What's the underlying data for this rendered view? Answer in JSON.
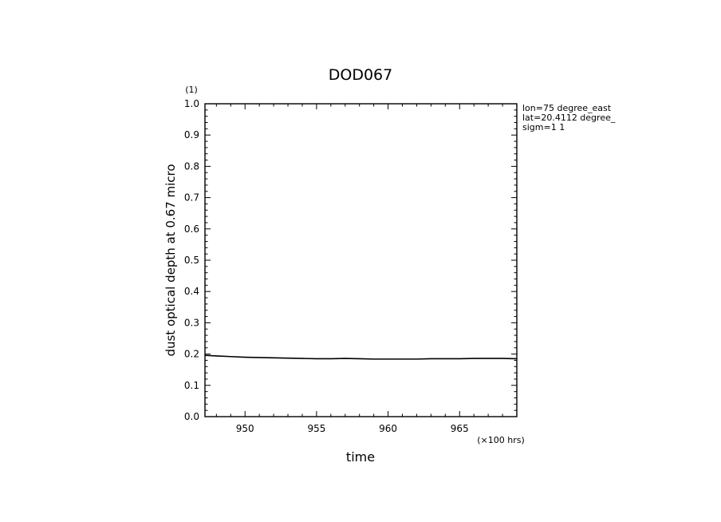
{
  "chart_data": {
    "type": "line",
    "title": "DOD067",
    "xlabel": "time",
    "ylabel": "dust optical depth at 0.67 micro",
    "x_unit_label": "(×100 hrs)",
    "y_unit_label": "(1)",
    "xlim": [
      947.2,
      969.0
    ],
    "ylim": [
      0.0,
      1.0
    ],
    "x_ticks": [
      950,
      955,
      960,
      965
    ],
    "x_tick_labels": [
      "950",
      "955",
      "960",
      "965"
    ],
    "y_ticks": [
      0.0,
      0.1,
      0.2,
      0.3,
      0.4,
      0.5,
      0.6,
      0.7,
      0.8,
      0.9,
      1.0
    ],
    "y_tick_labels": [
      "0.0",
      "0.1",
      "0.2",
      "0.3",
      "0.4",
      "0.5",
      "0.6",
      "0.7",
      "0.8",
      "0.9",
      "1.0"
    ],
    "grid": false,
    "annotations": [
      "lon=75 degree_east",
      "lat=20.4112 degree_",
      "sigm=1 1"
    ],
    "series": [
      {
        "x": [
          947.2,
          948,
          949,
          950,
          951,
          952,
          953,
          954,
          955,
          956,
          957,
          958,
          959,
          960,
          961,
          962,
          963,
          964,
          965,
          966,
          967,
          968,
          969
        ],
        "values": [
          0.196,
          0.194,
          0.192,
          0.19,
          0.189,
          0.188,
          0.187,
          0.186,
          0.185,
          0.185,
          0.186,
          0.185,
          0.184,
          0.184,
          0.184,
          0.184,
          0.185,
          0.185,
          0.185,
          0.186,
          0.186,
          0.186,
          0.185
        ]
      }
    ]
  }
}
